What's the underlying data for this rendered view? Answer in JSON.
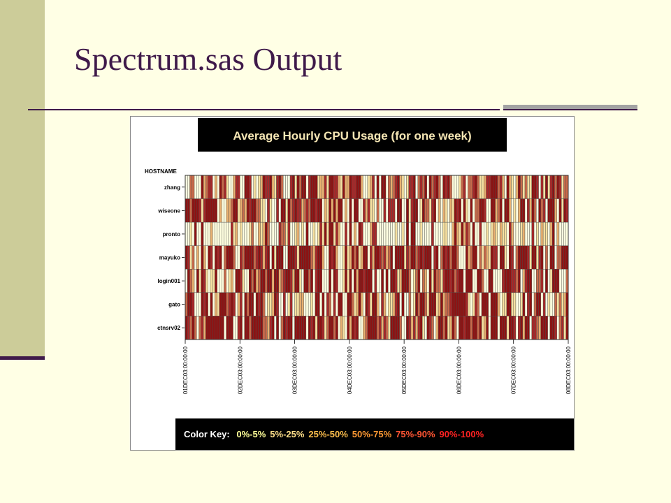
{
  "slide": {
    "title": "Spectrum.sas Output"
  },
  "chart_data": {
    "type": "heatmap",
    "title": "Average Hourly CPU Usage (for one week)",
    "y_axis_title": "HOSTNAME",
    "hosts": [
      "zhang",
      "wiseone",
      "pronto",
      "mayuko",
      "login001",
      "gato",
      "ctnsrv02"
    ],
    "x_ticks": [
      "01DEC03:00:00:00",
      "02DEC03:00:00:00",
      "03DEC03:00:00:00",
      "04DEC03:00:00:00",
      "05DEC03:00:00:00",
      "06DEC03:00:00:00",
      "07DEC03:00:00:00",
      "08DEC03:00:00:00"
    ],
    "hours": 168,
    "levels": [
      "0%-5%",
      "5%-25%",
      "25%-50%",
      "50%-75%",
      "75%-90%",
      "90%-100%"
    ],
    "level_colors": [
      "#FFFFE0",
      "#F6E0A0",
      "#E8B070",
      "#C86A4A",
      "#A82828",
      "#8E1212"
    ],
    "level_text_colors": [
      "#FFFF99",
      "#FFE08A",
      "#FFC04D",
      "#FF9933",
      "#FF5533",
      "#FF2222"
    ],
    "color_key_label": "Color Key:",
    "grid": false,
    "legend_position": "bottom",
    "hourly_levels": [
      "003300052344020534100244005540101254452145300045153550455512241554421522544552001240505503234521014450343505345305453000134033453112445553420521025313115540415145354133",
      "553555414555550200223551232545533110410040551534544234355455021525255020505500424110300404440550051455015331450202102154505105033554005523505520102550425305340555205154",
      "001050050002000000004120100013002125300004331400120105001014151551420040502054000244000000001001050550010000400001100252152430500400101210211042000120004010211025020000",
      "541302052054054503555300435555345424505155500555415555532455200545200151253512550425543423505555143553454555045035453553000523550313215440551054035555415514503055033555",
      "053205154101150003012055410053523553552552345542551055350455000505400151505255455504005050554125553013503205153314554534550555005530055000045554435024550033405015550003",
      "355400054505021555345402405355054530112540040140112200010550504304055005531252054155204201124505003015355315551252334555555410143055505552011551100150450355040100313125",
      "543530342555555550555004505535555533245050354550555550545155413553502105254500235555342431555530054242451054302553512530554553553512505550555155404525504432555055403415"
    ]
  }
}
